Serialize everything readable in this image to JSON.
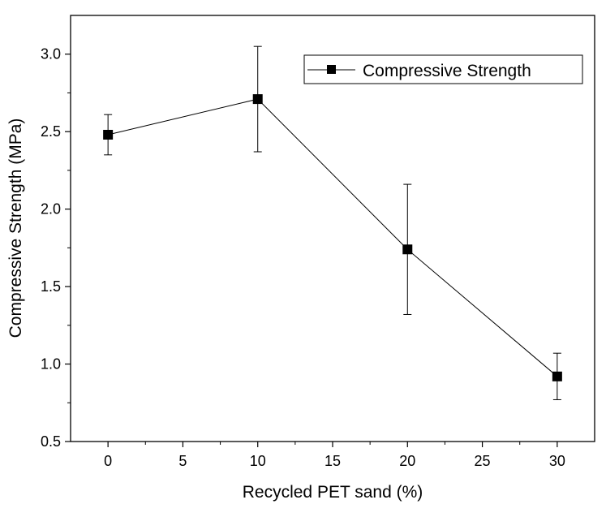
{
  "chart_data": {
    "type": "line",
    "title": "",
    "xlabel": "Recycled PET sand (%)",
    "ylabel": "Compressive Strength (MPa)",
    "xlim": [
      -2.5,
      32.5
    ],
    "ylim": [
      0.5,
      3.25
    ],
    "x_ticks": [
      0,
      5,
      10,
      15,
      20,
      25,
      30
    ],
    "x_tick_labels": [
      "0",
      "5",
      "10",
      "15",
      "20",
      "25",
      "30"
    ],
    "y_ticks": [
      0.5,
      1.0,
      1.5,
      2.0,
      2.5,
      3.0
    ],
    "y_tick_labels": [
      "0.5",
      "1.0",
      "1.5",
      "2.0",
      "2.5",
      "3.0"
    ],
    "grid": false,
    "legend_position": "top-right",
    "series": [
      {
        "name": "Compressive Strength",
        "marker": "square",
        "color": "#000000",
        "x": [
          0,
          10,
          20,
          30
        ],
        "y": [
          2.48,
          2.71,
          1.74,
          0.92
        ],
        "error": [
          {
            "low": 2.35,
            "high": 2.61
          },
          {
            "low": 2.37,
            "high": 3.05
          },
          {
            "low": 1.32,
            "high": 2.16
          },
          {
            "low": 0.77,
            "high": 1.07
          }
        ]
      }
    ]
  }
}
